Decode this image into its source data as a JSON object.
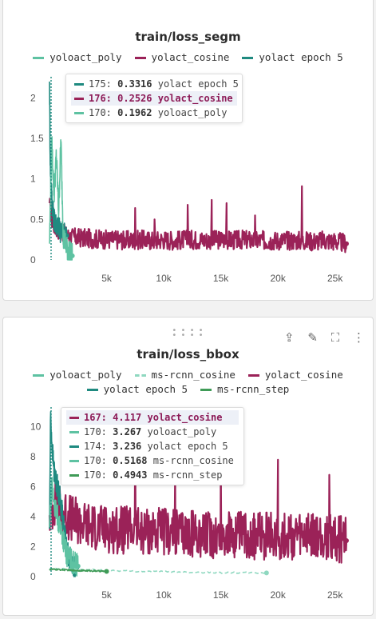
{
  "charts": [
    {
      "title": "train/loss_segm",
      "legend": [
        {
          "name": "yoloact_poly",
          "color": "#5ec2a2",
          "dashed": false
        },
        {
          "name": "yolact_cosine",
          "color": "#9b2258",
          "dashed": false
        },
        {
          "name": "yolact epoch 5",
          "color": "#1f8a80",
          "dashed": false
        }
      ],
      "tooltip": [
        {
          "step": "175:",
          "value": "0.3316",
          "name": "yolact epoch 5",
          "color": "#1f8a80",
          "dashed": false,
          "highlight": false
        },
        {
          "step": "176:",
          "value": "0.2526",
          "name": "yolact_cosine",
          "color": "#9b2258",
          "dashed": false,
          "highlight": true
        },
        {
          "step": "170:",
          "value": "0.1962",
          "name": "yoloact_poly",
          "color": "#5ec2a2",
          "dashed": false,
          "highlight": false
        }
      ],
      "chart_data": {
        "type": "line",
        "title": "train/loss_segm",
        "xlabel": "",
        "ylabel": "",
        "xlim": [
          0,
          26000
        ],
        "ylim": [
          0,
          2.2
        ],
        "x_ticks": [
          "5k",
          "10k",
          "15k",
          "20k",
          "25k"
        ],
        "y_ticks": [
          "0",
          "0.5",
          "1",
          "1.5",
          "2"
        ],
        "grid": false,
        "legend_position": "top",
        "series": [
          {
            "name": "yolact_cosine",
            "color": "#9b2258",
            "x": [
              0,
              200,
              500,
              1000,
              1500,
              2000,
              3000,
              4000,
              5000,
              6000,
              7000,
              8000,
              9000,
              10000,
              11000,
              12000,
              13000,
              14000,
              15000,
              16000,
              17000,
              18000,
              19000,
              20000,
              21000,
              22000,
              23000,
              24000,
              25000,
              26000
            ],
            "y": [
              0.7,
              0.5,
              0.4,
              0.35,
              0.3,
              0.28,
              0.27,
              0.26,
              0.25,
              0.25,
              0.24,
              0.25,
              0.24,
              0.25,
              0.24,
              0.25,
              0.25,
              0.24,
              0.25,
              0.24,
              0.25,
              0.24,
              0.24,
              0.24,
              0.24,
              0.24,
              0.23,
              0.24,
              0.23,
              0.2
            ],
            "spikes": [
              [
                7500,
                0.64
              ],
              [
                12100,
                0.68
              ],
              [
                14200,
                0.74
              ],
              [
                15500,
                0.7
              ],
              [
                22100,
                0.91
              ],
              [
                18000,
                0.55
              ],
              [
                9200,
                0.5
              ]
            ]
          },
          {
            "name": "yolact epoch 5",
            "color": "#1f8a80",
            "x": [
              0,
              50,
              100,
              200,
              300,
              400,
              600,
              800,
              1000,
              1200,
              1500
            ],
            "y": [
              2.2,
              1.4,
              1.0,
              0.8,
              0.6,
              0.5,
              0.45,
              0.4,
              0.35,
              0.33,
              0.3
            ]
          },
          {
            "name": "yoloact_poly",
            "color": "#5ec2a2",
            "x": [
              0,
              200,
              400,
              600,
              800,
              1000,
              1200,
              1500,
              2000
            ],
            "y": [
              0.2,
              1.45,
              0.8,
              1.3,
              0.6,
              1.5,
              0.3,
              0.15,
              0.05
            ]
          }
        ]
      }
    },
    {
      "title": "train/loss_bbox",
      "legend": [
        {
          "name": "yoloact_poly",
          "color": "#5ec2a2",
          "dashed": false
        },
        {
          "name": "ms-rcnn_cosine",
          "color": "#8fd8c0",
          "dashed": true
        },
        {
          "name": "yolact_cosine",
          "color": "#9b2258",
          "dashed": false
        },
        {
          "name": "yolact epoch 5",
          "color": "#1f8a80",
          "dashed": false
        },
        {
          "name": "ms-rcnn_step",
          "color": "#3f9b57",
          "dashed": false
        }
      ],
      "tooltip": [
        {
          "step": "167:",
          "value": "4.117",
          "name": "yolact_cosine",
          "color": "#9b2258",
          "dashed": false,
          "highlight": true
        },
        {
          "step": "170:",
          "value": "3.267",
          "name": "yoloact_poly",
          "color": "#5ec2a2",
          "dashed": false,
          "highlight": false
        },
        {
          "step": "174:",
          "value": "3.236",
          "name": "yolact epoch 5",
          "color": "#1f8a80",
          "dashed": false,
          "highlight": false
        },
        {
          "step": "170:",
          "value": "0.5168",
          "name": "ms-rcnn_cosine",
          "color": "#5ec2a2",
          "dashed": true,
          "highlight": false
        },
        {
          "step": "170:",
          "value": "0.4943",
          "name": "ms-rcnn_step",
          "color": "#3f9b57",
          "dashed": false,
          "highlight": false
        }
      ],
      "chart_data": {
        "type": "line",
        "title": "train/loss_bbox",
        "xlabel": "",
        "ylabel": "",
        "xlim": [
          0,
          26000
        ],
        "ylim": [
          0,
          11
        ],
        "x_ticks": [
          "5k",
          "10k",
          "15k",
          "20k",
          "25k"
        ],
        "y_ticks": [
          "0",
          "2",
          "4",
          "6",
          "8",
          "10"
        ],
        "grid": false,
        "legend_position": "top",
        "series": [
          {
            "name": "yolact_cosine",
            "color": "#9b2258",
            "x": [
              0,
              500,
              1000,
              2000,
              3000,
              4000,
              5000,
              6000,
              7000,
              8000,
              9000,
              10000,
              11000,
              12000,
              13000,
              14000,
              15000,
              16000,
              17000,
              18000,
              19000,
              20000,
              21000,
              22000,
              23000,
              24000,
              25000,
              26000
            ],
            "y": [
              4.1,
              5,
              4.5,
              3.8,
              3.5,
              3.3,
              3.2,
              3.1,
              3.1,
              3.0,
              3.0,
              3.0,
              2.9,
              2.9,
              2.9,
              2.8,
              2.8,
              2.8,
              2.8,
              2.7,
              2.7,
              2.7,
              2.7,
              2.6,
              2.6,
              2.6,
              2.6,
              2.4
            ],
            "spikes": [
              [
                7500,
                9.0
              ],
              [
                15000,
                8.0
              ],
              [
                20000,
                7.8
              ],
              [
                11000,
                7.2
              ],
              [
                24500,
                6.8
              ]
            ]
          },
          {
            "name": "yolact epoch 5",
            "color": "#1f8a80",
            "x": [
              0,
              100,
              200,
              400,
              700,
              1000,
              1300,
              1600,
              2000,
              2400
            ],
            "y": [
              3.2,
              11,
              9,
              7,
              6,
              5,
              3,
              1.5,
              0.9,
              0.6
            ]
          },
          {
            "name": "yoloact_poly",
            "color": "#5ec2a2",
            "x": [
              0,
              200,
              500,
              1000,
              1500,
              2000,
              2500
            ],
            "y": [
              3.3,
              6,
              4.5,
              3.2,
              1.5,
              1.0,
              0.7
            ]
          },
          {
            "name": "ms-rcnn_cosine",
            "color": "#8fd8c0",
            "x": [
              0,
              2000,
              4000,
              6000,
              8000,
              10000,
              12000,
              14000,
              16000,
              18000,
              19000
            ],
            "y": [
              0.52,
              0.5,
              0.45,
              0.4,
              0.35,
              0.33,
              0.3,
              0.28,
              0.26,
              0.25,
              0.25
            ]
          },
          {
            "name": "ms-rcnn_step",
            "color": "#3f9b57",
            "x": [
              0,
              1000,
              2000,
              3000,
              4000,
              5000
            ],
            "y": [
              0.49,
              0.46,
              0.42,
              0.4,
              0.38,
              0.35
            ]
          }
        ]
      }
    }
  ]
}
